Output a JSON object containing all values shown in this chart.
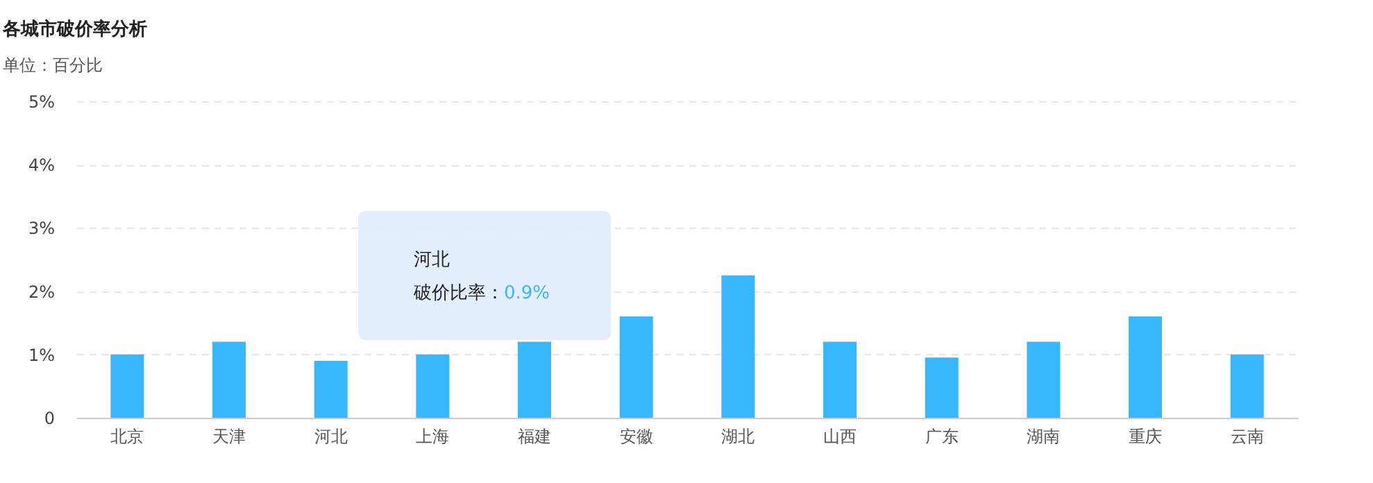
{
  "chart_data": {
    "type": "bar",
    "title": "各城市破价率分析",
    "subtitle": "单位：百分比",
    "categories": [
      "北京",
      "天津",
      "河北",
      "上海",
      "福建",
      "安徽",
      "湖北",
      "山西",
      "广东",
      "湖南",
      "重庆",
      "云南"
    ],
    "values": [
      1.0,
      1.2,
      0.9,
      1.0,
      1.2,
      1.6,
      2.25,
      1.2,
      0.95,
      1.2,
      1.6,
      1.0
    ],
    "color": "#38b7ff",
    "ylim": [
      0,
      5
    ],
    "yticks": [
      {
        "value": 0,
        "label": "0"
      },
      {
        "value": 1,
        "label": "1%"
      },
      {
        "value": 2,
        "label": "2%"
      },
      {
        "value": 3,
        "label": "3%"
      },
      {
        "value": 4,
        "label": "4%"
      },
      {
        "value": 5,
        "label": "5%"
      }
    ],
    "grid": "y",
    "annotations": [
      "河北",
      "破价比率：",
      "0.9%"
    ]
  }
}
